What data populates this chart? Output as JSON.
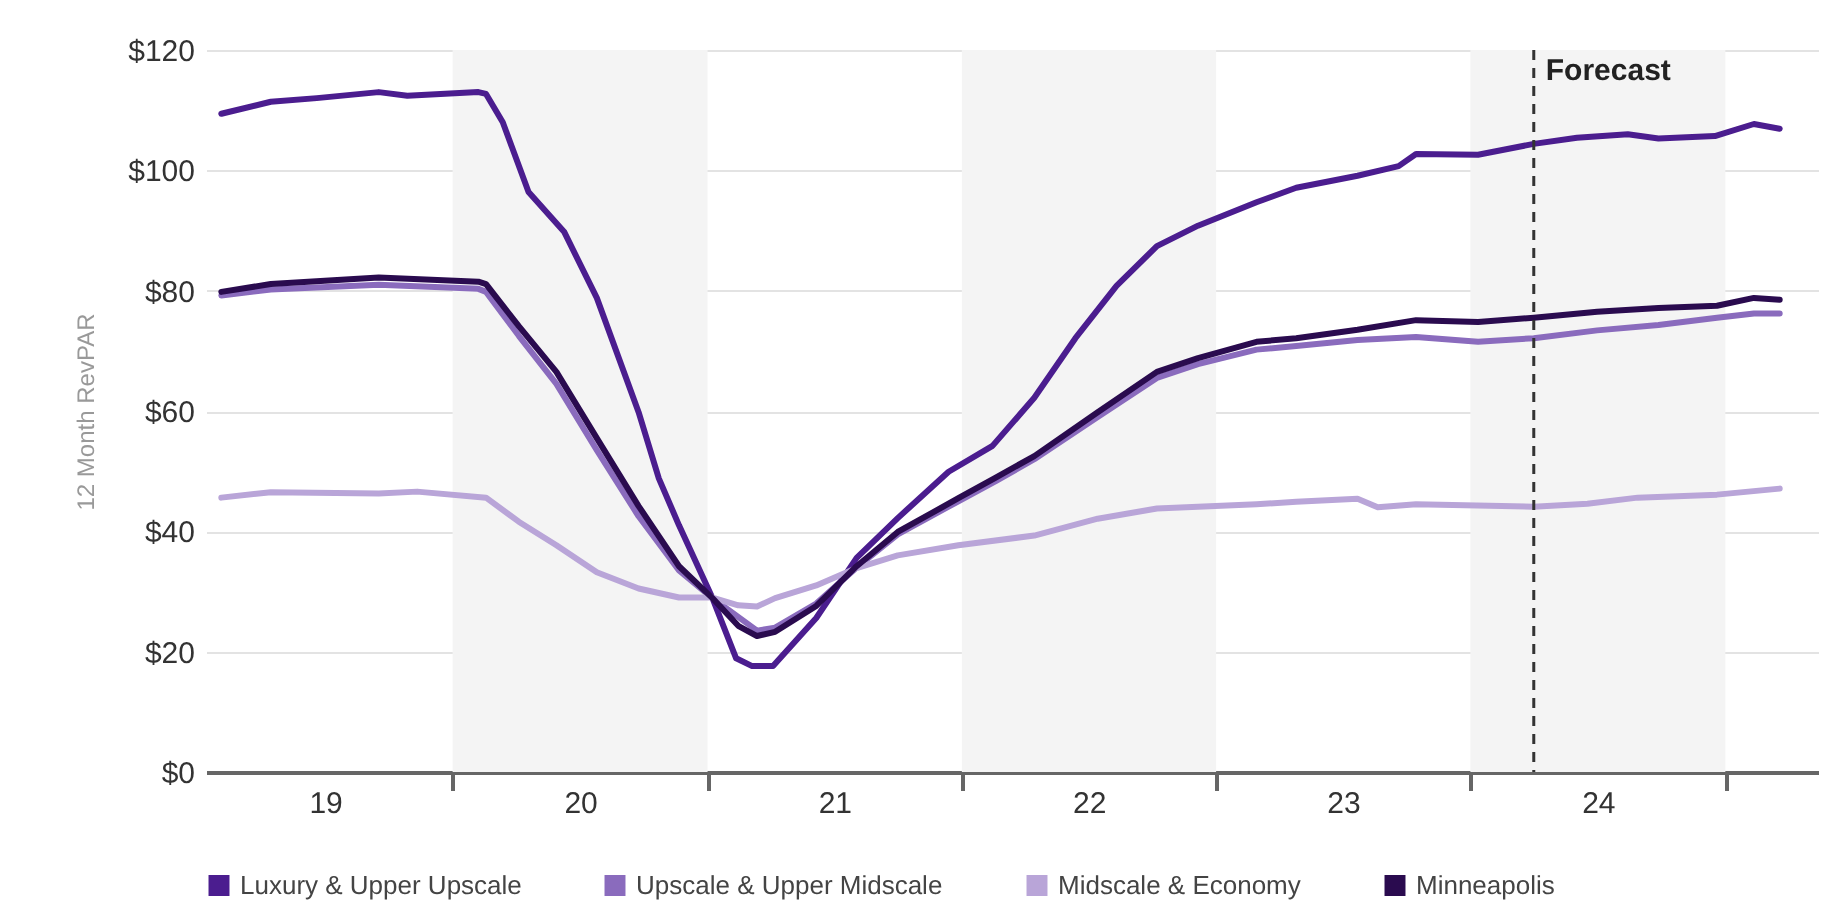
{
  "chart_data": {
    "type": "line",
    "ylabel": "12 Month RevPAR",
    "xlim": [
      "2019-01-12",
      "2025-05-14"
    ],
    "ylim": [
      0,
      120
    ],
    "xticks": [
      {
        "value": "2019-07-02",
        "label": "19"
      },
      {
        "value": "2020-01-01",
        "label": null
      },
      {
        "value": "2020-07-02",
        "label": "20"
      },
      {
        "value": "2021-01-01",
        "label": null
      },
      {
        "value": "2021-07-02",
        "label": "21"
      },
      {
        "value": "2022-01-01",
        "label": null
      },
      {
        "value": "2022-07-02",
        "label": "22"
      },
      {
        "value": "2023-01-01",
        "label": null
      },
      {
        "value": "2023-07-02",
        "label": "23"
      },
      {
        "value": "2024-01-01",
        "label": null
      },
      {
        "value": "2024-07-02",
        "label": "24"
      },
      {
        "value": "2025-01-01",
        "label": null
      }
    ],
    "yticks": [
      {
        "value": 0,
        "label": "$0"
      },
      {
        "value": 20,
        "label": "$20"
      },
      {
        "value": 40,
        "label": "$40"
      },
      {
        "value": 60,
        "label": "$60"
      },
      {
        "value": 80,
        "label": "$80"
      },
      {
        "value": 100,
        "label": "$100"
      },
      {
        "value": 120,
        "label": "$120"
      }
    ],
    "grid": "y",
    "legend": "bottom",
    "line_style": "solid",
    "bands": [
      {
        "axis": "x",
        "from": "2020-01-01",
        "to": "2021-01-01",
        "color": "#f4f4f4"
      },
      {
        "axis": "x",
        "from": "2022-01-01",
        "to": "2023-01-01",
        "color": "#f4f4f4"
      },
      {
        "axis": "x",
        "from": "2024-01-01",
        "to": "2025-01-01",
        "color": "#f4f4f4"
      }
    ],
    "ref_lines": [
      {
        "axis": "x",
        "value": "2024-04-01",
        "label": "Forecast",
        "color": "#333333",
        "line_style": "dashed"
      }
    ],
    "series": [
      {
        "name": "Luxury & Upper Upscale",
        "color": "#4b1d8f",
        "x": [
          "2019-02-03",
          "2019-04-15",
          "2019-06-20",
          "2019-09-17",
          "2019-10-28",
          "2020-02-07",
          "2020-02-18",
          "2020-03-13",
          "2020-04-19",
          "2020-06-09",
          "2020-07-26",
          "2020-09-24",
          "2020-10-23",
          "2020-11-21",
          "2021-01-08",
          "2021-02-11",
          "2021-03-06",
          "2021-04-05",
          "2021-06-06",
          "2021-08-03",
          "2021-10-01",
          "2021-12-13",
          "2022-02-14",
          "2022-04-15",
          "2022-06-13",
          "2022-08-11",
          "2022-10-08",
          "2022-12-06",
          "2023-02-28",
          "2023-04-26",
          "2023-07-23",
          "2023-09-20",
          "2023-10-15",
          "2024-01-12",
          "2024-04-01",
          "2024-06-02",
          "2024-08-14",
          "2024-09-27",
          "2024-12-17",
          "2025-02-11",
          "2025-03-20"
        ],
        "values": [
          109.4,
          111.4,
          112,
          113,
          112.4,
          113,
          112.7,
          108,
          96.4,
          89.8,
          78.8,
          59.8,
          48.8,
          41,
          28.9,
          18.9,
          17.6,
          17.6,
          25.6,
          35.6,
          42.2,
          49.9,
          54.2,
          62.2,
          72.1,
          80.8,
          87.4,
          90.8,
          94.7,
          97.1,
          99.1,
          100.7,
          102.7,
          102.6,
          104.4,
          105.4,
          106,
          105.3,
          105.7,
          107.7,
          106.9
        ]
      },
      {
        "name": "Upscale & Upper Midscale",
        "color": "#8a6bbd",
        "x": [
          "2019-02-03",
          "2019-04-15",
          "2019-09-17",
          "2020-02-07",
          "2020-02-18",
          "2020-04-05",
          "2020-05-29",
          "2020-07-26",
          "2020-09-24",
          "2020-11-21",
          "2021-01-08",
          "2021-03-13",
          "2021-04-08",
          "2021-06-06",
          "2021-08-03",
          "2021-10-01",
          "2021-12-27",
          "2022-02-18",
          "2022-04-15",
          "2022-07-15",
          "2022-10-08",
          "2022-12-06",
          "2023-02-28",
          "2023-04-26",
          "2023-07-23",
          "2023-10-15",
          "2024-01-12",
          "2024-04-01",
          "2024-07-01",
          "2024-09-27",
          "2024-12-20",
          "2025-02-11",
          "2025-03-20"
        ],
        "values": [
          79.2,
          80.2,
          81,
          80.3,
          79.8,
          72.5,
          64.5,
          53.5,
          42.5,
          33.5,
          28.9,
          23.5,
          24,
          28,
          34,
          39.5,
          45,
          48.3,
          52,
          59,
          65.5,
          67.8,
          70.2,
          70.8,
          71.8,
          72.3,
          71.5,
          72.1,
          73.4,
          74.3,
          75.5,
          76.2,
          76.2
        ]
      },
      {
        "name": "Midscale & Economy",
        "color": "#b9a5d8",
        "x": [
          "2019-02-03",
          "2019-04-15",
          "2019-09-17",
          "2019-11-11",
          "2020-02-18",
          "2020-04-05",
          "2020-05-29",
          "2020-07-26",
          "2020-09-24",
          "2020-11-21",
          "2021-01-08",
          "2021-02-14",
          "2021-03-13",
          "2021-04-08",
          "2021-06-06",
          "2021-08-03",
          "2021-10-01",
          "2021-12-27",
          "2022-04-15",
          "2022-07-15",
          "2022-10-08",
          "2023-02-28",
          "2023-04-26",
          "2023-07-23",
          "2023-08-21",
          "2023-10-15",
          "2024-04-01",
          "2024-06-17",
          "2024-08-28",
          "2024-12-20",
          "2025-03-20"
        ],
        "values": [
          45.6,
          46.5,
          46.3,
          46.6,
          45.6,
          41.6,
          37.7,
          33.2,
          30.5,
          29,
          29,
          27.7,
          27.5,
          28.9,
          31,
          33.9,
          36,
          37.7,
          39.3,
          42.1,
          43.8,
          44.5,
          44.9,
          45.4,
          44,
          44.5,
          44.1,
          44.6,
          45.6,
          46.1,
          47.1
        ]
      },
      {
        "name": "Minneapolis",
        "color": "#2a0b4f",
        "x": [
          "2019-02-03",
          "2019-04-15",
          "2019-09-17",
          "2020-02-07",
          "2020-02-18",
          "2020-04-05",
          "2020-05-29",
          "2020-07-26",
          "2020-09-24",
          "2020-11-21",
          "2021-01-08",
          "2021-02-14",
          "2021-03-13",
          "2021-04-08",
          "2021-06-06",
          "2021-08-03",
          "2021-10-01",
          "2021-12-27",
          "2022-02-18",
          "2022-04-15",
          "2022-07-15",
          "2022-10-08",
          "2022-12-06",
          "2023-02-28",
          "2023-04-26",
          "2023-07-23",
          "2023-10-15",
          "2024-01-12",
          "2024-04-01",
          "2024-07-01",
          "2024-09-27",
          "2024-12-20",
          "2025-02-11",
          "2025-03-20"
        ],
        "values": [
          79.8,
          81.1,
          82.2,
          81.5,
          81.1,
          74.1,
          66.5,
          55.5,
          44.2,
          34.2,
          28.9,
          24.3,
          22.6,
          23.3,
          27.6,
          34.2,
          39.9,
          45.5,
          48.9,
          52.5,
          59.8,
          66.5,
          68.8,
          71.5,
          72.1,
          73.5,
          75.1,
          74.8,
          75.5,
          76.5,
          77.1,
          77.5,
          78.8,
          78.5
        ]
      }
    ]
  }
}
